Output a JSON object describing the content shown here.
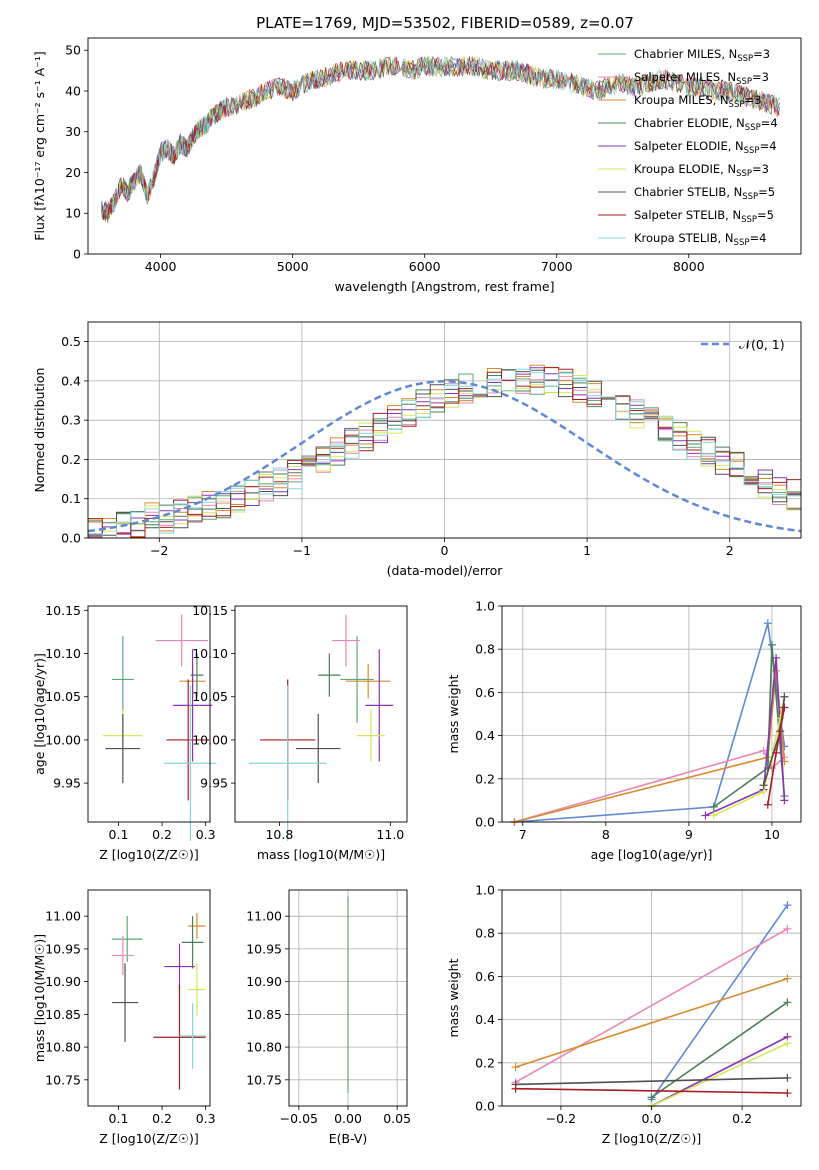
{
  "figure": {
    "title": "PLATE=1769, MJD=53502, FIBERID=0589, z=0.07"
  },
  "colors": {
    "series": [
      "#5fa878",
      "#e987b6",
      "#d98a2e",
      "#4a7f5a",
      "#8a34b2",
      "#d7e65a",
      "#505050",
      "#a81d22",
      "#86d6d9",
      "#6088d6"
    ]
  },
  "chart_data": [
    {
      "id": "spectrum",
      "type": "line",
      "xlabel": "wavelength [Angstrom, rest frame]",
      "ylabel": "Flux [fλ10⁻¹⁷ erg cm⁻² s⁻¹ A⁻¹]",
      "xlim": [
        3450,
        8850
      ],
      "ylim": [
        0,
        53
      ],
      "xticks": [
        4000,
        5000,
        6000,
        7000,
        8000
      ],
      "yticks": [
        0,
        10,
        20,
        30,
        40,
        50
      ],
      "grid": false,
      "legend_position": "top-right",
      "x": [
        3550,
        3600,
        3650,
        3700,
        3750,
        3800,
        3850,
        3900,
        3950,
        4000,
        4050,
        4100,
        4150,
        4200,
        4250,
        4300,
        4350,
        4400,
        4450,
        4500,
        4600,
        4700,
        4800,
        4900,
        5000,
        5100,
        5200,
        5300,
        5400,
        5500,
        5600,
        5700,
        5800,
        5900,
        6000,
        6100,
        6200,
        6300,
        6400,
        6500,
        6600,
        6700,
        6800,
        6900,
        7000,
        7100,
        7200,
        7300,
        7400,
        7500,
        7600,
        7700,
        7800,
        7900,
        8000,
        8100,
        8200,
        8300,
        8400,
        8500,
        8600,
        8700
      ],
      "y": [
        11,
        10,
        13,
        17,
        15,
        18,
        20,
        14,
        19,
        25,
        26,
        24,
        27,
        26,
        29,
        31,
        32,
        34,
        35,
        36,
        37,
        38,
        40,
        41,
        40,
        42,
        43,
        44,
        45,
        45,
        45,
        46,
        46,
        45,
        46,
        46,
        46,
        46,
        46,
        45,
        45,
        45,
        44,
        43,
        43,
        42,
        41,
        40,
        41,
        42,
        41,
        42,
        43,
        42,
        41,
        41,
        40,
        40,
        39,
        38,
        37,
        36
      ],
      "series": [
        {
          "name": "Chabrier MILES, N",
          "sub": "SSP",
          "suffix": "=3"
        },
        {
          "name": "Salpeter MILES, N",
          "sub": "SSP",
          "suffix": "=3"
        },
        {
          "name": "Kroupa MILES, N",
          "sub": "SSP",
          "suffix": "=3"
        },
        {
          "name": "Chabrier ELODIE, N",
          "sub": "SSP",
          "suffix": "=4"
        },
        {
          "name": "Salpeter ELODIE, N",
          "sub": "SSP",
          "suffix": "=4"
        },
        {
          "name": "Kroupa ELODIE, N",
          "sub": "SSP",
          "suffix": "=3"
        },
        {
          "name": "Chabrier STELIB, N",
          "sub": "SSP",
          "suffix": "=5"
        },
        {
          "name": "Salpeter STELIB, N",
          "sub": "SSP",
          "suffix": "=5"
        },
        {
          "name": "Kroupa STELIB, N",
          "sub": "SSP",
          "suffix": "=4"
        }
      ]
    },
    {
      "id": "residuals",
      "type": "histogram",
      "xlabel": "(data-model)/error",
      "ylabel": "Normed distribution",
      "xlim": [
        -2.5,
        2.5
      ],
      "ylim": [
        0,
        0.55
      ],
      "xticks": [
        -2,
        -1,
        0,
        1,
        2
      ],
      "yticks": [
        0.0,
        0.1,
        0.2,
        0.3,
        0.4,
        0.5
      ],
      "grid": true,
      "legend": "𝒩(0, 1)",
      "legend_position": "top-right",
      "bin_width": 0.1,
      "bin_start": -2.5,
      "values": [
        0.02,
        0.02,
        0.03,
        0.04,
        0.05,
        0.05,
        0.06,
        0.07,
        0.08,
        0.09,
        0.1,
        0.12,
        0.13,
        0.14,
        0.16,
        0.18,
        0.2,
        0.22,
        0.24,
        0.26,
        0.28,
        0.3,
        0.32,
        0.34,
        0.36,
        0.37,
        0.38,
        0.39,
        0.4,
        0.4,
        0.4,
        0.4,
        0.4,
        0.39,
        0.38,
        0.37,
        0.35,
        0.34,
        0.32,
        0.3,
        0.28,
        0.26,
        0.24,
        0.22,
        0.2,
        0.18,
        0.16,
        0.14,
        0.12,
        0.11
      ]
    },
    {
      "id": "age-vs-Z",
      "type": "errorbar",
      "xlabel": "Z [log10(Z/Z☉)]",
      "ylabel": "age  [log10(age/yr)]",
      "xlim": [
        0.03,
        0.31
      ],
      "ylim": [
        9.905,
        10.155
      ],
      "xticks": [
        0.1,
        0.2,
        0.3
      ],
      "yticks": [
        9.95,
        10.0,
        10.05,
        10.1,
        10.15
      ],
      "grid": false,
      "points": [
        {
          "x": 0.11,
          "xe": 0.025,
          "y": 10.07,
          "ye": 0.05
        },
        {
          "x": 0.245,
          "xe": 0.06,
          "y": 10.115,
          "ye": 0.03
        },
        {
          "x": 0.27,
          "xe": 0.03,
          "y": 10.068,
          "ye": 0.02
        },
        {
          "x": 0.28,
          "xe": 0.015,
          "y": 10.075,
          "ye": 0.025
        },
        {
          "x": 0.27,
          "xe": 0.045,
          "y": 10.04,
          "ye": 0.065
        },
        {
          "x": 0.11,
          "xe": 0.045,
          "y": 10.005,
          "ye": 0.03
        },
        {
          "x": 0.11,
          "xe": 0.04,
          "y": 9.99,
          "ye": 0.04
        },
        {
          "x": 0.26,
          "xe": 0.05,
          "y": 10.0,
          "ye": 0.07
        },
        {
          "x": 0.265,
          "xe": 0.06,
          "y": 9.973,
          "ye": 0.09
        }
      ]
    },
    {
      "id": "age-vs-mass",
      "type": "errorbar",
      "xlabel": "mass [log10(M/M☉)]",
      "ylabel": "",
      "xlim": [
        10.72,
        11.03
      ],
      "ylim": [
        9.905,
        10.155
      ],
      "xticks": [
        10.8,
        11.0
      ],
      "yticks": [
        9.95,
        10.0,
        10.05,
        10.1,
        10.15
      ],
      "grid": false,
      "points": [
        {
          "x": 10.94,
          "xe": 0.03,
          "y": 10.07,
          "ye": 0.05
        },
        {
          "x": 10.92,
          "xe": 0.025,
          "y": 10.115,
          "ye": 0.03
        },
        {
          "x": 10.96,
          "xe": 0.04,
          "y": 10.068,
          "ye": 0.02
        },
        {
          "x": 10.89,
          "xe": 0.02,
          "y": 10.075,
          "ye": 0.025
        },
        {
          "x": 10.98,
          "xe": 0.025,
          "y": 10.04,
          "ye": 0.065
        },
        {
          "x": 10.965,
          "xe": 0.025,
          "y": 10.005,
          "ye": 0.03
        },
        {
          "x": 10.87,
          "xe": 0.04,
          "y": 9.99,
          "ye": 0.04
        },
        {
          "x": 10.815,
          "xe": 0.05,
          "y": 10.0,
          "ye": 0.07
        },
        {
          "x": 10.815,
          "xe": 0.07,
          "y": 9.973,
          "ye": 0.09
        }
      ]
    },
    {
      "id": "weight-vs-age",
      "type": "line",
      "xlabel": "age  [log10(age/yr)]",
      "ylabel": "mass weight",
      "xlim": [
        6.75,
        10.35
      ],
      "ylim": [
        0,
        1.0
      ],
      "xticks": [
        7,
        8,
        9,
        10
      ],
      "yticks": [
        0.0,
        0.2,
        0.4,
        0.6,
        0.8,
        1.0
      ],
      "grid": true,
      "series": [
        {
          "x": [
            6.9,
            9.3,
            9.95,
            10.15
          ],
          "y": [
            0.0,
            0.07,
            0.92,
            0.35
          ]
        },
        {
          "x": [
            6.9,
            9.9,
            10.0,
            10.15
          ],
          "y": [
            0.0,
            0.33,
            0.25,
            0.3
          ]
        },
        {
          "x": [
            6.9,
            9.95,
            10.05,
            10.15
          ],
          "y": [
            0.0,
            0.3,
            0.7,
            0.28
          ]
        },
        {
          "x": [
            9.3,
            9.95,
            10.0,
            10.15
          ],
          "y": [
            0.07,
            0.25,
            0.82,
            0.12
          ]
        },
        {
          "x": [
            9.2,
            9.9,
            10.05,
            10.15
          ],
          "y": [
            0.03,
            0.15,
            0.76,
            0.1
          ]
        },
        {
          "x": [
            9.3,
            9.9,
            10.1,
            10.15
          ],
          "y": [
            0.03,
            0.14,
            0.48,
            0.58
          ]
        },
        {
          "x": [
            9.9,
            10.1,
            10.15
          ],
          "y": [
            0.17,
            0.42,
            0.58
          ]
        },
        {
          "x": [
            9.95,
            10.05,
            10.15
          ],
          "y": [
            0.08,
            0.32,
            0.53
          ]
        }
      ]
    },
    {
      "id": "mass-vs-Z",
      "type": "errorbar",
      "xlabel": "Z [log10(Z/Z☉)]",
      "ylabel": "mass [log10(M/M☉)]",
      "xlim": [
        0.03,
        0.31
      ],
      "ylim": [
        10.71,
        11.04
      ],
      "xticks": [
        0.1,
        0.2,
        0.3
      ],
      "yticks": [
        10.75,
        10.8,
        10.85,
        10.9,
        10.95,
        11.0
      ],
      "grid": false,
      "points": [
        {
          "x": 0.12,
          "xe": 0.035,
          "y": 10.965,
          "ye": 0.035
        },
        {
          "x": 0.11,
          "xe": 0.025,
          "y": 10.94,
          "ye": 0.03
        },
        {
          "x": 0.28,
          "xe": 0.02,
          "y": 10.985,
          "ye": 0.02
        },
        {
          "x": 0.27,
          "xe": 0.025,
          "y": 10.96,
          "ye": 0.04
        },
        {
          "x": 0.24,
          "xe": 0.035,
          "y": 10.923,
          "ye": 0.035
        },
        {
          "x": 0.28,
          "xe": 0.02,
          "y": 10.888,
          "ye": 0.04
        },
        {
          "x": 0.115,
          "xe": 0.03,
          "y": 10.868,
          "ye": 0.06
        },
        {
          "x": 0.24,
          "xe": 0.06,
          "y": 10.815,
          "ye": 0.08
        },
        {
          "x": 0.27,
          "xe": 0.03,
          "y": 10.817,
          "ye": 0.05
        }
      ]
    },
    {
      "id": "mass-vs-ebv",
      "type": "errorbar",
      "xlabel": "E(B-V)",
      "ylabel": "",
      "xlim": [
        -0.06,
        0.06
      ],
      "ylim": [
        10.71,
        11.04
      ],
      "xticks": [
        -0.05,
        0.0,
        0.05
      ],
      "xticklabels": [
        "−0.05",
        "0.00",
        "0.05"
      ],
      "yticks": [
        10.75,
        10.8,
        10.85,
        10.9,
        10.95,
        11.0
      ],
      "grid": true,
      "points": [
        {
          "x": 0.0,
          "y": 10.88,
          "ye": 0.15
        }
      ]
    },
    {
      "id": "weight-vs-Z",
      "type": "line",
      "xlabel": "Z [log10(Z/Z☉)]",
      "ylabel": "mass weight",
      "xlim": [
        -0.33,
        0.33
      ],
      "ylim": [
        0,
        1.0
      ],
      "xticks": [
        -0.2,
        0.0,
        0.2
      ],
      "xticklabels": [
        "−0.2",
        "0.0",
        "0.2"
      ],
      "yticks": [
        0.0,
        0.2,
        0.4,
        0.6,
        0.8,
        1.0
      ],
      "grid": true,
      "series": [
        {
          "x": [
            0.0,
            0.3
          ],
          "y": [
            0.03,
            0.93
          ]
        },
        {
          "x": [
            -0.3,
            0.3
          ],
          "y": [
            0.11,
            0.82
          ]
        },
        {
          "x": [
            -0.3,
            0.3
          ],
          "y": [
            0.18,
            0.59
          ]
        },
        {
          "x": [
            0.0,
            0.3
          ],
          "y": [
            0.04,
            0.48
          ]
        },
        {
          "x": [
            0.0,
            0.3
          ],
          "y": [
            0.0,
            0.32
          ]
        },
        {
          "x": [
            0.0,
            0.3
          ],
          "y": [
            0.0,
            0.29
          ]
        },
        {
          "x": [
            -0.3,
            0.3
          ],
          "y": [
            0.1,
            0.13
          ]
        },
        {
          "x": [
            -0.3,
            0.3
          ],
          "y": [
            0.08,
            0.06
          ]
        }
      ]
    }
  ]
}
